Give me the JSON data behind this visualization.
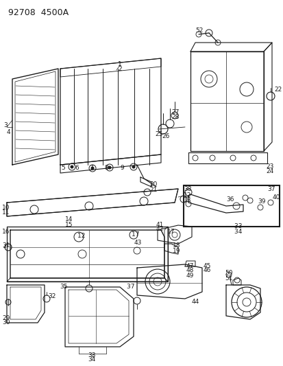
{
  "title": "92708  4500A",
  "bg_color": "#ffffff",
  "line_color": "#1a1a1a",
  "title_fontsize": 9,
  "label_fontsize": 6.5,
  "fig_width": 4.14,
  "fig_height": 5.33,
  "dpi": 100
}
